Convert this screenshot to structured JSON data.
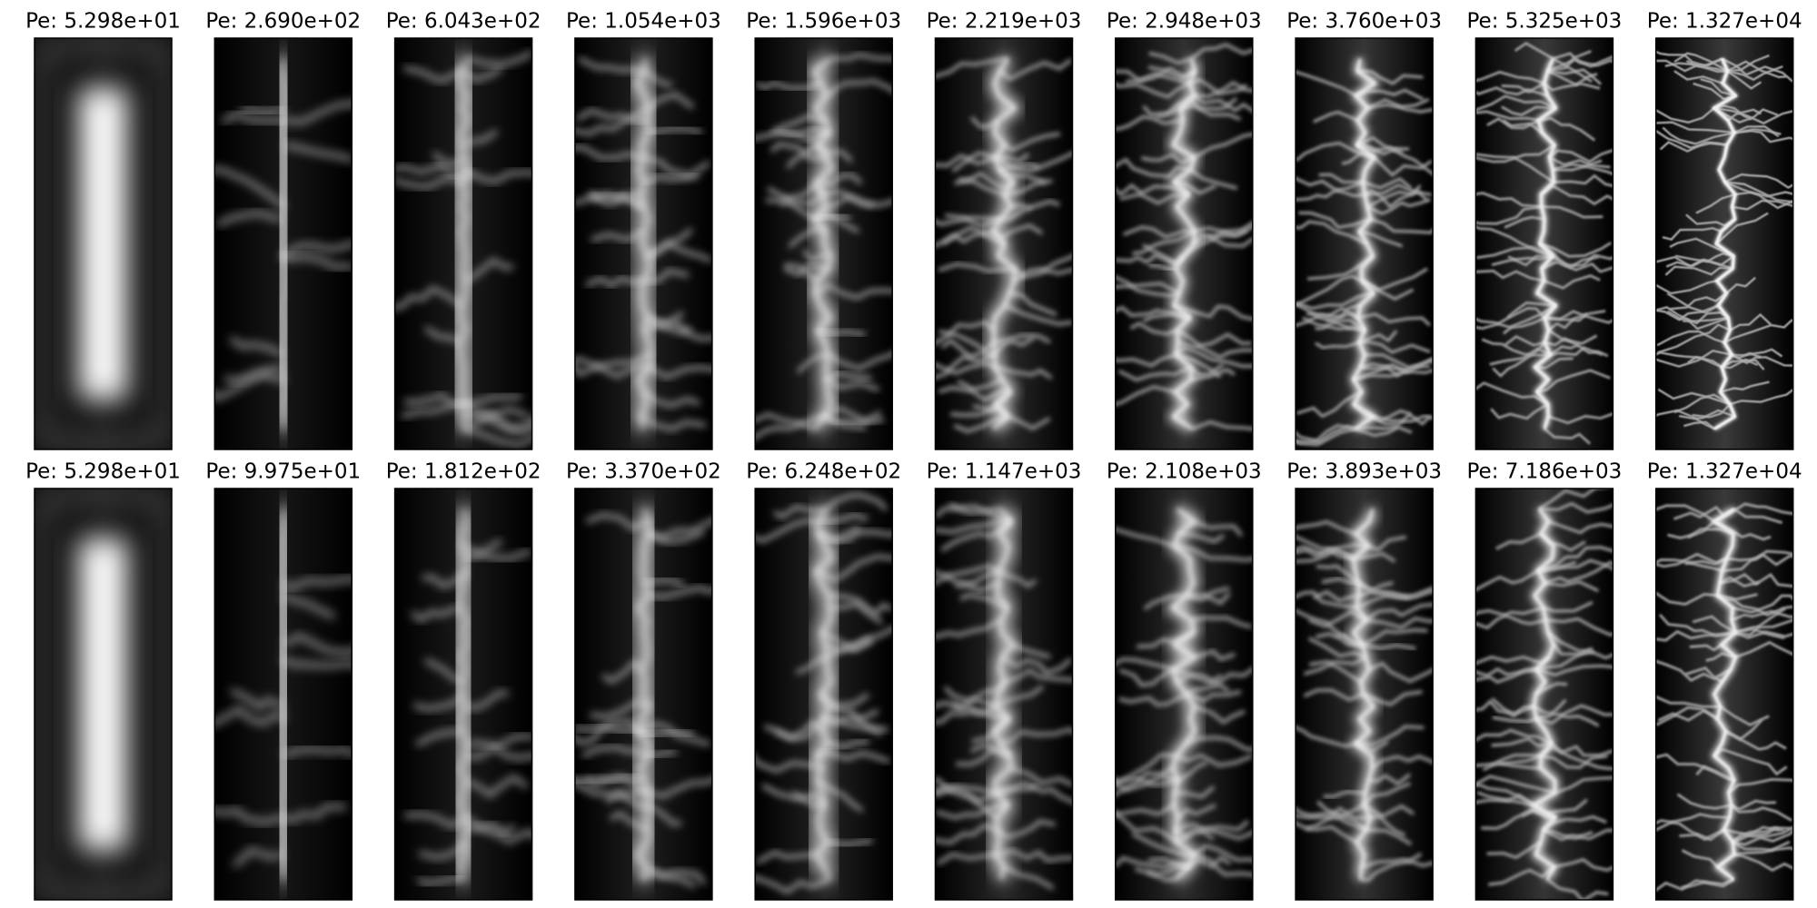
{
  "rows": [
    {
      "titles": [
        "Pe: 5.298e+01",
        "Pe: 2.690e+02",
        "Pe: 6.043e+02",
        "Pe: 1.054e+03",
        "Pe: 1.596e+03",
        "Pe: 2.219e+03",
        "Pe: 2.948e+03",
        "Pe: 3.760e+03",
        "Pe: 5.325e+03",
        "Pe: 1.327e+04"
      ]
    },
    {
      "titles": [
        "Pe: 5.298e+01",
        "Pe: 9.975e+01",
        "Pe: 1.812e+02",
        "Pe: 3.370e+02",
        "Pe: 6.248e+02",
        "Pe: 1.147e+03",
        "Pe: 2.108e+03",
        "Pe: 3.893e+03",
        "Pe: 7.186e+03",
        "Pe: 1.327e+04"
      ]
    }
  ]
}
